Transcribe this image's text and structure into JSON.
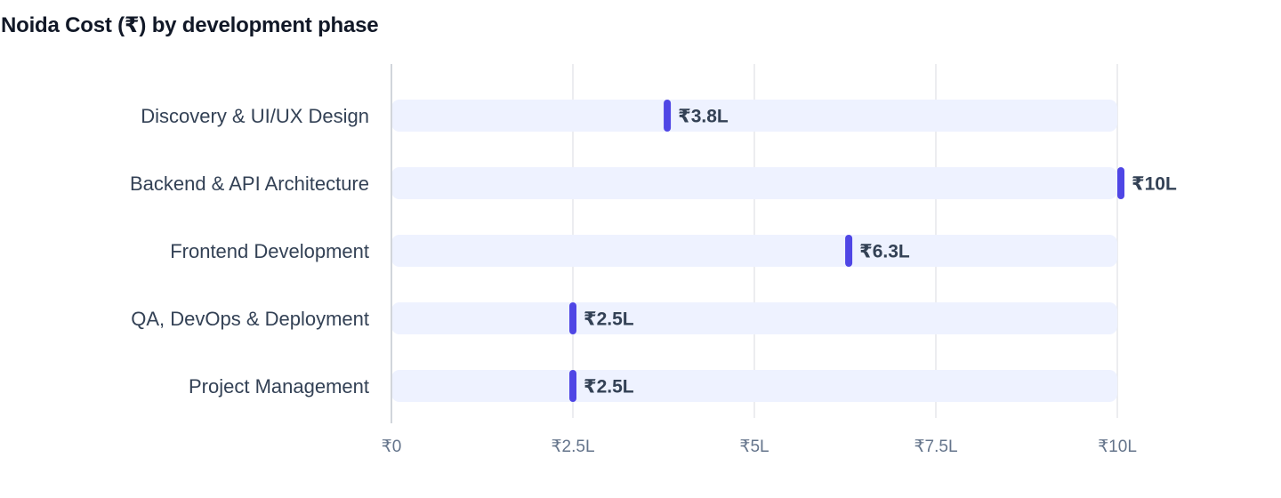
{
  "chart_data": {
    "type": "bar",
    "title": "Noida Cost (₹) by development phase",
    "categories": [
      "Discovery & UI/UX Design",
      "Backend & API Architecture",
      "Frontend Development",
      "QA, DevOps & Deployment",
      "Project Management"
    ],
    "values": [
      380000,
      1000000,
      630000,
      250000,
      250000
    ],
    "value_labels": [
      "₹3.8L",
      "₹10L",
      "₹6.3L",
      "₹2.5L",
      "₹2.5L"
    ],
    "orientation": "horizontal",
    "xlim": [
      0,
      1000000
    ],
    "x_ticks": [
      0,
      250000,
      500000,
      750000,
      1000000
    ],
    "x_tick_labels": [
      "₹0",
      "₹2.5L",
      "₹5L",
      "₹7.5L",
      "₹10L"
    ],
    "xlabel": "",
    "ylabel": "",
    "grid": true,
    "legend": "none"
  },
  "colors": {
    "marker": "#4f46e5",
    "track": "#eef2ff",
    "grid": "#e5e7eb",
    "axis": "#d1d5db"
  }
}
